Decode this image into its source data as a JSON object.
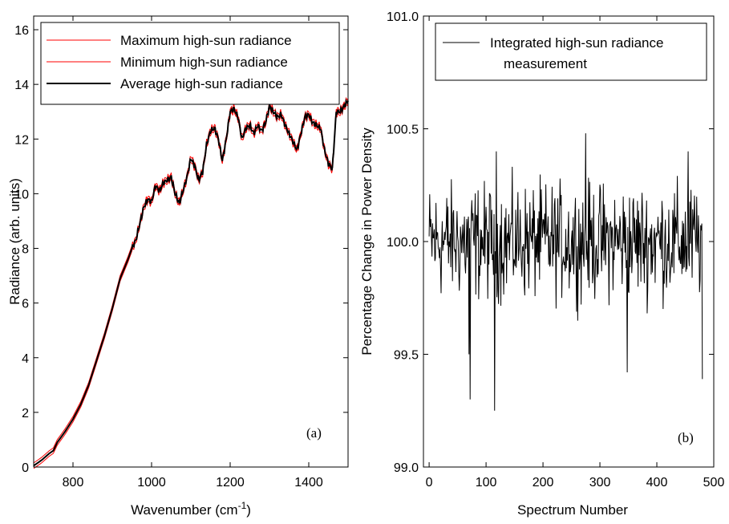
{
  "chart_data": [
    {
      "type": "line",
      "panel_label": "(a)",
      "xlabel_main": "Wavenumber (cm",
      "xlabel_sup": "-1",
      "xlabel_close": ")",
      "ylabel": "Radiance (arb. units)",
      "xlim": [
        700,
        1500
      ],
      "ylim": [
        0,
        16.5
      ],
      "xticks": [
        "800",
        "1000",
        "1200",
        "1400"
      ],
      "yticks": [
        "0",
        "2",
        "4",
        "6",
        "8",
        "10",
        "12",
        "14",
        "16"
      ],
      "legend_position": "top-left",
      "series": [
        {
          "name": "Maximum high-sun radiance",
          "color": "#ff0000",
          "offset": 0.1
        },
        {
          "name": "Minimum high-sun radiance",
          "color": "#ff0000",
          "offset": -0.1
        },
        {
          "name": "Average high-sun radiance",
          "color": "#000000",
          "offset": 0
        }
      ],
      "x": [
        700,
        720,
        740,
        750,
        760,
        780,
        800,
        820,
        840,
        860,
        880,
        900,
        920,
        940,
        950,
        960,
        970,
        980,
        990,
        1000,
        1010,
        1020,
        1030,
        1040,
        1050,
        1060,
        1070,
        1080,
        1090,
        1100,
        1110,
        1120,
        1130,
        1140,
        1150,
        1160,
        1170,
        1180,
        1190,
        1200,
        1210,
        1220,
        1230,
        1240,
        1250,
        1260,
        1270,
        1280,
        1290,
        1300,
        1310,
        1320,
        1330,
        1340,
        1350,
        1360,
        1370,
        1380,
        1390,
        1400,
        1410,
        1420,
        1430,
        1440,
        1450,
        1460,
        1470,
        1480,
        1490,
        1500
      ],
      "average": [
        0.05,
        0.25,
        0.5,
        0.6,
        0.9,
        1.3,
        1.75,
        2.3,
        3.0,
        3.9,
        4.8,
        5.8,
        6.9,
        7.6,
        8.0,
        8.3,
        8.9,
        9.5,
        9.8,
        9.7,
        10.3,
        10.1,
        10.4,
        10.5,
        10.6,
        10.0,
        9.65,
        10.1,
        10.6,
        11.3,
        11.0,
        10.5,
        10.8,
        11.8,
        12.3,
        12.4,
        12.0,
        11.2,
        12.0,
        13.0,
        13.1,
        12.8,
        12.0,
        12.4,
        12.5,
        12.2,
        12.5,
        12.3,
        12.6,
        13.2,
        13.0,
        12.8,
        12.9,
        12.5,
        12.2,
        11.9,
        11.6,
        12.2,
        12.8,
        12.9,
        12.6,
        12.5,
        12.4,
        11.6,
        11.1,
        10.9,
        13.0,
        13.0,
        13.2,
        13.4
      ]
    },
    {
      "type": "line",
      "panel_label": "(b)",
      "xlabel": "Spectrum Number",
      "ylabel": "Percentage Change in Power Density",
      "xlim": [
        -10,
        500
      ],
      "ylim": [
        99.0,
        101.0
      ],
      "xticks": [
        "0",
        "100",
        "200",
        "300",
        "400",
        "500"
      ],
      "yticks": [
        "99.0",
        "99.5",
        "100.0",
        "100.5",
        "101.0"
      ],
      "legend_position": "top-left",
      "series": [
        {
          "name": "Integrated high-sun radiance",
          "name_line2": "measurement",
          "color": "#000000"
        }
      ],
      "n_points": 481,
      "mean": 100.0,
      "spread": 0.13,
      "spikes": [
        [
          72,
          99.3
        ],
        [
          115,
          99.25
        ],
        [
          275,
          100.48
        ],
        [
          118,
          100.4
        ],
        [
          455,
          100.4
        ],
        [
          480,
          99.39
        ],
        [
          70,
          99.5
        ],
        [
          348,
          99.42
        ]
      ]
    }
  ]
}
